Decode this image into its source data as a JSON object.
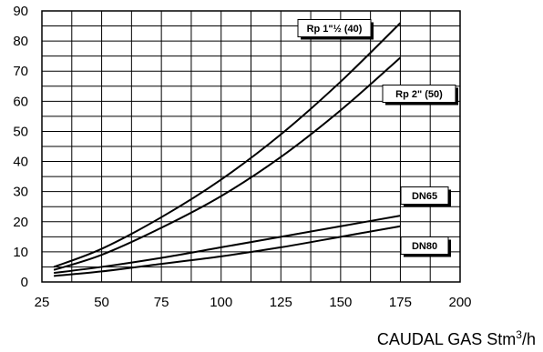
{
  "chart_data": {
    "type": "line",
    "xlabel": "CAUDAL GAS Stm",
    "xlabel_sup": "3",
    "xlabel_unit": "/h",
    "ylabel": "",
    "xlim": [
      25,
      200
    ],
    "ylim": [
      0,
      90
    ],
    "x_ticks": [
      25,
      50,
      75,
      100,
      125,
      150,
      175,
      200
    ],
    "y_ticks": [
      0,
      10,
      20,
      30,
      40,
      50,
      60,
      70,
      80,
      90
    ],
    "x_grid_step": 12.5,
    "y_grid_step": 5,
    "grid": true,
    "series": [
      {
        "name": "Rp 1\"½ (40)",
        "x": [
          30,
          50,
          75,
          100,
          125,
          150,
          175
        ],
        "y": [
          5,
          11,
          21.5,
          34,
          49,
          66.5,
          86
        ]
      },
      {
        "name": "Rp 2\" (50)",
        "x": [
          30,
          50,
          75,
          100,
          125,
          150,
          175
        ],
        "y": [
          4,
          9,
          18,
          28.5,
          41.5,
          57,
          74.5
        ]
      },
      {
        "name": "DN65",
        "x": [
          30,
          50,
          75,
          100,
          125,
          150,
          175
        ],
        "y": [
          3,
          5,
          8,
          11.5,
          15,
          18.5,
          22
        ]
      },
      {
        "name": "DN80",
        "x": [
          30,
          50,
          75,
          100,
          125,
          150,
          175
        ],
        "y": [
          2,
          3.5,
          6,
          8.5,
          11.5,
          15,
          18.5
        ]
      }
    ]
  }
}
